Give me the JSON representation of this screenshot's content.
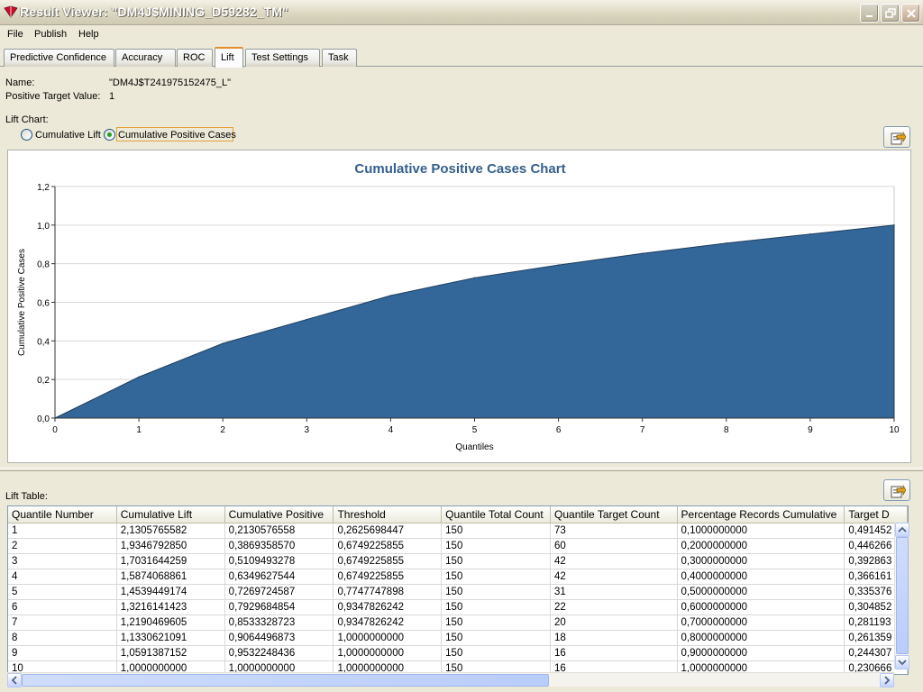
{
  "window": {
    "title": "Result Viewer: \"DM4J$MINING_D59282_TM\"",
    "icons": {
      "app": "oracle-mining-icon",
      "minimize": "minimize-icon",
      "restore": "restore-icon",
      "close": "close-icon"
    }
  },
  "menu": [
    "File",
    "Publish",
    "Help"
  ],
  "tabs": [
    "Predictive Confidence",
    "Accuracy",
    "ROC",
    "Lift",
    "Test Settings",
    "Task"
  ],
  "active_tab": "Lift",
  "info": {
    "name_label": "Name:",
    "name_value": "\"DM4J$T241975152475_L\"",
    "ptv_label": "Positive Target Value:",
    "ptv_value": "1"
  },
  "lift_chart": {
    "label": "Lift Chart:",
    "option_cumulative_lift": "Cumulative Lift",
    "option_cumulative_positive": "Cumulative Positive Cases",
    "selected": "Cumulative Positive Cases"
  },
  "chart_data": {
    "type": "area",
    "title": "Cumulative Positive Cases Chart",
    "xlabel": "Quantiles",
    "ylabel": "Cumulative Positive Cases",
    "x": [
      0,
      1,
      2,
      3,
      4,
      5,
      6,
      7,
      8,
      9,
      10
    ],
    "y": [
      0,
      0.2130576558,
      0.386935857,
      0.5109493278,
      0.6349627544,
      0.7269724587,
      0.7929684854,
      0.8533328723,
      0.9064496873,
      0.9532248436,
      1.0
    ],
    "x_ticks": [
      "0",
      "1",
      "2",
      "3",
      "4",
      "5",
      "6",
      "7",
      "8",
      "9",
      "10"
    ],
    "y_ticks": [
      "0,0",
      "0,2",
      "0,4",
      "0,6",
      "0,8",
      "1,0",
      "1,2"
    ],
    "xlim": [
      0,
      10
    ],
    "ylim": [
      0,
      1.2
    ],
    "grid": true,
    "fill_color": "#336699"
  },
  "lift_table": {
    "label": "Lift Table:",
    "columns": [
      "Quantile Number",
      "Cumulative Lift",
      "Cumulative Positive",
      "Threshold",
      "Quantile Total Count",
      "Quantile Target Count",
      "Percentage Records Cumulative",
      "Target D"
    ],
    "rows": [
      [
        "1",
        "2,1305765582",
        "0,2130576558",
        "0,2625698447",
        "150",
        "73",
        "0,1000000000",
        "0,491452"
      ],
      [
        "2",
        "1,9346792850",
        "0,3869358570",
        "0,6749225855",
        "150",
        "60",
        "0,2000000000",
        "0,446266"
      ],
      [
        "3",
        "1,7031644259",
        "0,5109493278",
        "0,6749225855",
        "150",
        "42",
        "0,3000000000",
        "0,392863"
      ],
      [
        "4",
        "1,5874068861",
        "0,6349627544",
        "0,6749225855",
        "150",
        "42",
        "0,4000000000",
        "0,366161"
      ],
      [
        "5",
        "1,4539449174",
        "0,7269724587",
        "0,7747747898",
        "150",
        "31",
        "0,5000000000",
        "0,335376"
      ],
      [
        "6",
        "1,3216141423",
        "0,7929684854",
        "0,9347826242",
        "150",
        "22",
        "0,6000000000",
        "0,304852"
      ],
      [
        "7",
        "1,2190469605",
        "0,8533328723",
        "0,9347826242",
        "150",
        "20",
        "0,7000000000",
        "0,281193"
      ],
      [
        "8",
        "1,1330621091",
        "0,9064496873",
        "1,0000000000",
        "150",
        "18",
        "0,8000000000",
        "0,261359"
      ],
      [
        "9",
        "1,0591387152",
        "0,9532248436",
        "1,0000000000",
        "150",
        "16",
        "0,9000000000",
        "0,244307"
      ],
      [
        "10",
        "1,0000000000",
        "1,0000000000",
        "1,0000000000",
        "150",
        "16",
        "1,0000000000",
        "0,230666"
      ]
    ]
  }
}
